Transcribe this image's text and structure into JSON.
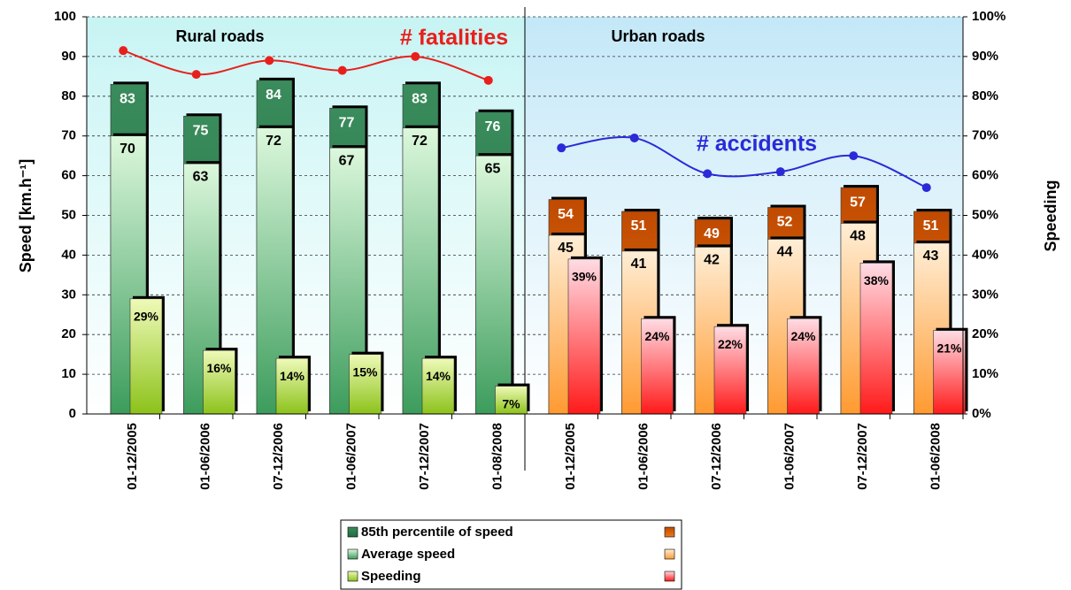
{
  "chart_data": {
    "type": "bar",
    "groups": [
      {
        "name": "Rural roads",
        "categories": [
          "01-12/2005",
          "01-06/2006",
          "07-12/2006",
          "01-06/2007",
          "07-12/2007",
          "01-08/2008"
        ]
      },
      {
        "name": "Urban roads",
        "categories": [
          "01-12/2005",
          "01-06/2006",
          "07-12/2006",
          "01-06/2007",
          "07-12/2007",
          "01-06/2008"
        ]
      }
    ],
    "ylabel": "Speed [km.h⁻¹]",
    "y2label": "Speeding",
    "ylim": [
      0,
      100
    ],
    "yticks": [
      0,
      10,
      20,
      30,
      40,
      50,
      60,
      70,
      80,
      90,
      100
    ],
    "y2lim": [
      0,
      100
    ],
    "y2ticks": [
      {
        "value": 0,
        "label": "0%"
      },
      {
        "value": 10,
        "label": "10%"
      },
      {
        "value": 20,
        "label": "20%"
      },
      {
        "value": 30,
        "label": "30%"
      },
      {
        "value": 40,
        "label": "40%"
      },
      {
        "value": 50,
        "label": "50%"
      },
      {
        "value": 60,
        "label": "60%"
      },
      {
        "value": 70,
        "label": "70%"
      },
      {
        "value": 80,
        "label": "80%"
      },
      {
        "value": 90,
        "label": "90%"
      },
      {
        "value": 100,
        "label": "100%"
      }
    ],
    "grid": true,
    "series": [
      {
        "name": "85th percentile of speed",
        "colors": [
          [
            "#3a8c5c",
            "#1f6b40"
          ],
          [
            "#c04a00",
            "#e87a1a"
          ]
        ],
        "values": [
          83,
          75,
          84,
          77,
          83,
          76,
          54,
          51,
          49,
          52,
          57,
          51
        ]
      },
      {
        "name": "Average speed",
        "colors": [
          [
            "#dcf8dc",
            "#3c9c5c"
          ],
          [
            "#ffeed6",
            "#ff9a30"
          ]
        ],
        "values": [
          70,
          63,
          72,
          67,
          72,
          65,
          45,
          41,
          42,
          44,
          48,
          43
        ]
      },
      {
        "name": "Speeding",
        "axis": "y2",
        "colors": [
          [
            "#eefab8",
            "#8cc21a"
          ],
          [
            "#ffdce4",
            "#ff1a1a"
          ]
        ],
        "values": [
          29,
          16,
          14,
          15,
          14,
          7,
          39,
          24,
          22,
          24,
          38,
          21
        ],
        "value_labels": [
          "29%",
          "16%",
          "14%",
          "15%",
          "14%",
          "7%",
          "39%",
          "24%",
          "22%",
          "24%",
          "38%",
          "21%"
        ]
      }
    ],
    "lines": [
      {
        "name": "# fatalities",
        "type": "line",
        "color": "#e8201c",
        "values": [
          91.5,
          85.5,
          89,
          86.5,
          90,
          84,
          null,
          null,
          null,
          null,
          null,
          null
        ]
      },
      {
        "name": "# accidents",
        "type": "line",
        "color": "#2a2ad8",
        "values": [
          null,
          null,
          null,
          null,
          null,
          null,
          67,
          69.5,
          60.5,
          61,
          65,
          57
        ]
      }
    ]
  }
}
